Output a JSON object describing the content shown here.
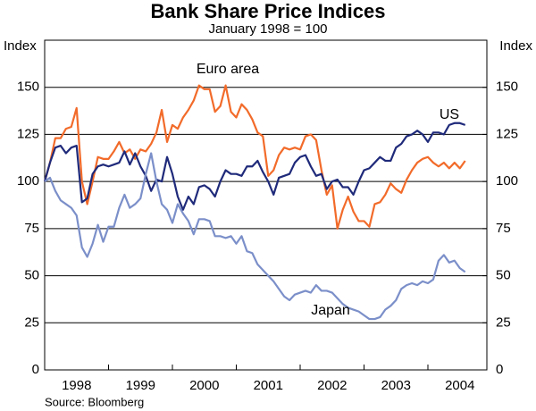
{
  "chart_data": {
    "type": "line",
    "title": "Bank Share Price Indices",
    "subtitle": "January 1998 = 100",
    "y_label": "Index",
    "y2_label": "Index",
    "source": "Source: Bloomberg",
    "categories": [
      null,
      null,
      null,
      null,
      null,
      null,
      "1998",
      null,
      null,
      null,
      null,
      null,
      null,
      null,
      null,
      null,
      null,
      null,
      "1999",
      null,
      null,
      null,
      null,
      null,
      null,
      null,
      null,
      null,
      null,
      null,
      "2000",
      null,
      null,
      null,
      null,
      null,
      null,
      null,
      null,
      null,
      null,
      null,
      "2001",
      null,
      null,
      null,
      null,
      null,
      null,
      null,
      null,
      null,
      null,
      null,
      "2002",
      null,
      null,
      null,
      null,
      null,
      null,
      null,
      null,
      null,
      null,
      null,
      "2003",
      null,
      null,
      null,
      null,
      null,
      null,
      null,
      null,
      null,
      null,
      null,
      "2004",
      null
    ],
    "series": [
      {
        "name": "Euro area",
        "color": "#f26b2a",
        "values": [
          100,
          110,
          123,
          123,
          128,
          129,
          139,
          100,
          88,
          100,
          113,
          112,
          112,
          116,
          121,
          115,
          117,
          112,
          117,
          116,
          120,
          126,
          138,
          121,
          130,
          128,
          134,
          138,
          143,
          151,
          149,
          149,
          137,
          140,
          151,
          137,
          134,
          141,
          138,
          133,
          126,
          124,
          103,
          106,
          114,
          118,
          117,
          118,
          117,
          124,
          125,
          122,
          106,
          93,
          98,
          75,
          85,
          92,
          84,
          79,
          79,
          76,
          88,
          89,
          93,
          99,
          96,
          94,
          101,
          106,
          110,
          112,
          113,
          110,
          108,
          110,
          107,
          110,
          107,
          111
        ]
      },
      {
        "name": "US",
        "color": "#1f2a7a",
        "values": [
          100,
          110,
          118,
          119,
          115,
          118,
          119,
          89,
          91,
          104,
          108,
          109,
          108,
          109,
          110,
          116,
          109,
          115,
          108,
          103,
          95,
          101,
          100,
          113,
          104,
          92,
          85,
          92,
          88,
          97,
          98,
          96,
          92,
          100,
          106,
          104,
          104,
          103,
          108,
          108,
          111,
          105,
          100,
          93,
          102,
          103,
          104,
          110,
          113,
          114,
          108,
          103,
          104,
          96,
          100,
          101,
          97,
          97,
          93,
          100,
          106,
          107,
          110,
          113,
          111,
          111,
          118,
          120,
          124,
          125,
          127,
          125,
          121,
          126,
          126,
          125,
          130,
          131,
          131,
          130
        ]
      },
      {
        "name": "Japan",
        "color": "#7b8fc9",
        "values": [
          100,
          102,
          95,
          90,
          88,
          86,
          82,
          65,
          60,
          67,
          77,
          68,
          76,
          76,
          86,
          93,
          86,
          88,
          91,
          104,
          115,
          100,
          88,
          85,
          78,
          88,
          83,
          79,
          72,
          80,
          80,
          79,
          71,
          71,
          70,
          71,
          67,
          71,
          63,
          62,
          56,
          53,
          50,
          47,
          43,
          39,
          37,
          40,
          41,
          42,
          41,
          45,
          42,
          42,
          41,
          38,
          35,
          33,
          32,
          31,
          29,
          27,
          27,
          28,
          32,
          34,
          37,
          43,
          45,
          46,
          45,
          47,
          46,
          48,
          58,
          61,
          57,
          58,
          54,
          52
        ]
      }
    ],
    "ylim": [
      0,
      175
    ],
    "yticks": [
      0,
      25,
      50,
      75,
      100,
      125,
      150
    ],
    "y2lim": [
      0,
      175
    ],
    "y2ticks": [
      0,
      25,
      50,
      75,
      100,
      125,
      150
    ],
    "grid": true
  }
}
